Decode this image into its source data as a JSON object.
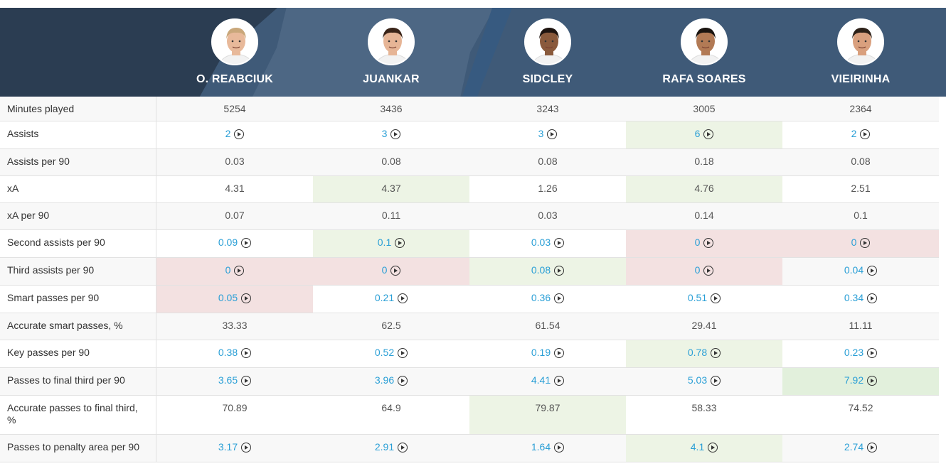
{
  "players": [
    {
      "name": "O. REABCIUK",
      "skin": "#e8b99a",
      "hair": "#c9a77a"
    },
    {
      "name": "JUANKAR",
      "skin": "#e6b596",
      "hair": "#3a2418"
    },
    {
      "name": "SIDCLEY",
      "skin": "#8a5a3c",
      "hair": "#1e1410"
    },
    {
      "name": "RAFA SOARES",
      "skin": "#b27a55",
      "hair": "#1a1410"
    },
    {
      "name": "VIEIRINHA",
      "skin": "#d9a07e",
      "hair": "#2d2118"
    }
  ],
  "rows": [
    {
      "label": "Minutes played",
      "cells": [
        {
          "value": "5254",
          "link": false,
          "bg": ""
        },
        {
          "value": "3436",
          "link": false,
          "bg": ""
        },
        {
          "value": "3243",
          "link": false,
          "bg": ""
        },
        {
          "value": "3005",
          "link": false,
          "bg": ""
        },
        {
          "value": "2364",
          "link": false,
          "bg": ""
        }
      ]
    },
    {
      "label": "Assists",
      "cells": [
        {
          "value": "2",
          "link": true,
          "bg": ""
        },
        {
          "value": "3",
          "link": true,
          "bg": ""
        },
        {
          "value": "3",
          "link": true,
          "bg": ""
        },
        {
          "value": "6",
          "link": true,
          "bg": "green"
        },
        {
          "value": "2",
          "link": true,
          "bg": ""
        }
      ]
    },
    {
      "label": "Assists per 90",
      "cells": [
        {
          "value": "0.03",
          "link": false,
          "bg": ""
        },
        {
          "value": "0.08",
          "link": false,
          "bg": ""
        },
        {
          "value": "0.08",
          "link": false,
          "bg": ""
        },
        {
          "value": "0.18",
          "link": false,
          "bg": ""
        },
        {
          "value": "0.08",
          "link": false,
          "bg": ""
        }
      ]
    },
    {
      "label": "xA",
      "cells": [
        {
          "value": "4.31",
          "link": false,
          "bg": ""
        },
        {
          "value": "4.37",
          "link": false,
          "bg": "green"
        },
        {
          "value": "1.26",
          "link": false,
          "bg": ""
        },
        {
          "value": "4.76",
          "link": false,
          "bg": "green"
        },
        {
          "value": "2.51",
          "link": false,
          "bg": ""
        }
      ]
    },
    {
      "label": "xA per 90",
      "cells": [
        {
          "value": "0.07",
          "link": false,
          "bg": ""
        },
        {
          "value": "0.11",
          "link": false,
          "bg": ""
        },
        {
          "value": "0.03",
          "link": false,
          "bg": ""
        },
        {
          "value": "0.14",
          "link": false,
          "bg": ""
        },
        {
          "value": "0.1",
          "link": false,
          "bg": ""
        }
      ]
    },
    {
      "label": "Second assists per 90",
      "cells": [
        {
          "value": "0.09",
          "link": true,
          "bg": ""
        },
        {
          "value": "0.1",
          "link": true,
          "bg": "green"
        },
        {
          "value": "0.03",
          "link": true,
          "bg": ""
        },
        {
          "value": "0",
          "link": true,
          "bg": "red"
        },
        {
          "value": "0",
          "link": true,
          "bg": "red"
        }
      ]
    },
    {
      "label": "Third assists per 90",
      "cells": [
        {
          "value": "0",
          "link": true,
          "bg": "red"
        },
        {
          "value": "0",
          "link": true,
          "bg": "red"
        },
        {
          "value": "0.08",
          "link": true,
          "bg": "green"
        },
        {
          "value": "0",
          "link": true,
          "bg": "red"
        },
        {
          "value": "0.04",
          "link": true,
          "bg": ""
        }
      ]
    },
    {
      "label": "Smart passes per 90",
      "cells": [
        {
          "value": "0.05",
          "link": true,
          "bg": "red"
        },
        {
          "value": "0.21",
          "link": true,
          "bg": ""
        },
        {
          "value": "0.36",
          "link": true,
          "bg": ""
        },
        {
          "value": "0.51",
          "link": true,
          "bg": ""
        },
        {
          "value": "0.34",
          "link": true,
          "bg": ""
        }
      ]
    },
    {
      "label": "Accurate smart passes, %",
      "cells": [
        {
          "value": "33.33",
          "link": false,
          "bg": ""
        },
        {
          "value": "62.5",
          "link": false,
          "bg": ""
        },
        {
          "value": "61.54",
          "link": false,
          "bg": ""
        },
        {
          "value": "29.41",
          "link": false,
          "bg": ""
        },
        {
          "value": "11.11",
          "link": false,
          "bg": ""
        }
      ]
    },
    {
      "label": "Key passes per 90",
      "cells": [
        {
          "value": "0.38",
          "link": true,
          "bg": ""
        },
        {
          "value": "0.52",
          "link": true,
          "bg": ""
        },
        {
          "value": "0.19",
          "link": true,
          "bg": ""
        },
        {
          "value": "0.78",
          "link": true,
          "bg": "green"
        },
        {
          "value": "0.23",
          "link": true,
          "bg": ""
        }
      ]
    },
    {
      "label": "Passes to final third per 90",
      "cells": [
        {
          "value": "3.65",
          "link": true,
          "bg": ""
        },
        {
          "value": "3.96",
          "link": true,
          "bg": ""
        },
        {
          "value": "4.41",
          "link": true,
          "bg": ""
        },
        {
          "value": "5.03",
          "link": true,
          "bg": ""
        },
        {
          "value": "7.92",
          "link": true,
          "bg": "green2"
        }
      ]
    },
    {
      "label": "Accurate passes to final third, %",
      "cells": [
        {
          "value": "70.89",
          "link": false,
          "bg": ""
        },
        {
          "value": "64.9",
          "link": false,
          "bg": ""
        },
        {
          "value": "79.87",
          "link": false,
          "bg": "green"
        },
        {
          "value": "58.33",
          "link": false,
          "bg": ""
        },
        {
          "value": "74.52",
          "link": false,
          "bg": ""
        }
      ]
    },
    {
      "label": "Passes to penalty area per 90",
      "cells": [
        {
          "value": "3.17",
          "link": true,
          "bg": ""
        },
        {
          "value": "2.91",
          "link": true,
          "bg": ""
        },
        {
          "value": "1.64",
          "link": true,
          "bg": ""
        },
        {
          "value": "4.1",
          "link": true,
          "bg": "green"
        },
        {
          "value": "2.74",
          "link": true,
          "bg": ""
        }
      ]
    }
  ]
}
